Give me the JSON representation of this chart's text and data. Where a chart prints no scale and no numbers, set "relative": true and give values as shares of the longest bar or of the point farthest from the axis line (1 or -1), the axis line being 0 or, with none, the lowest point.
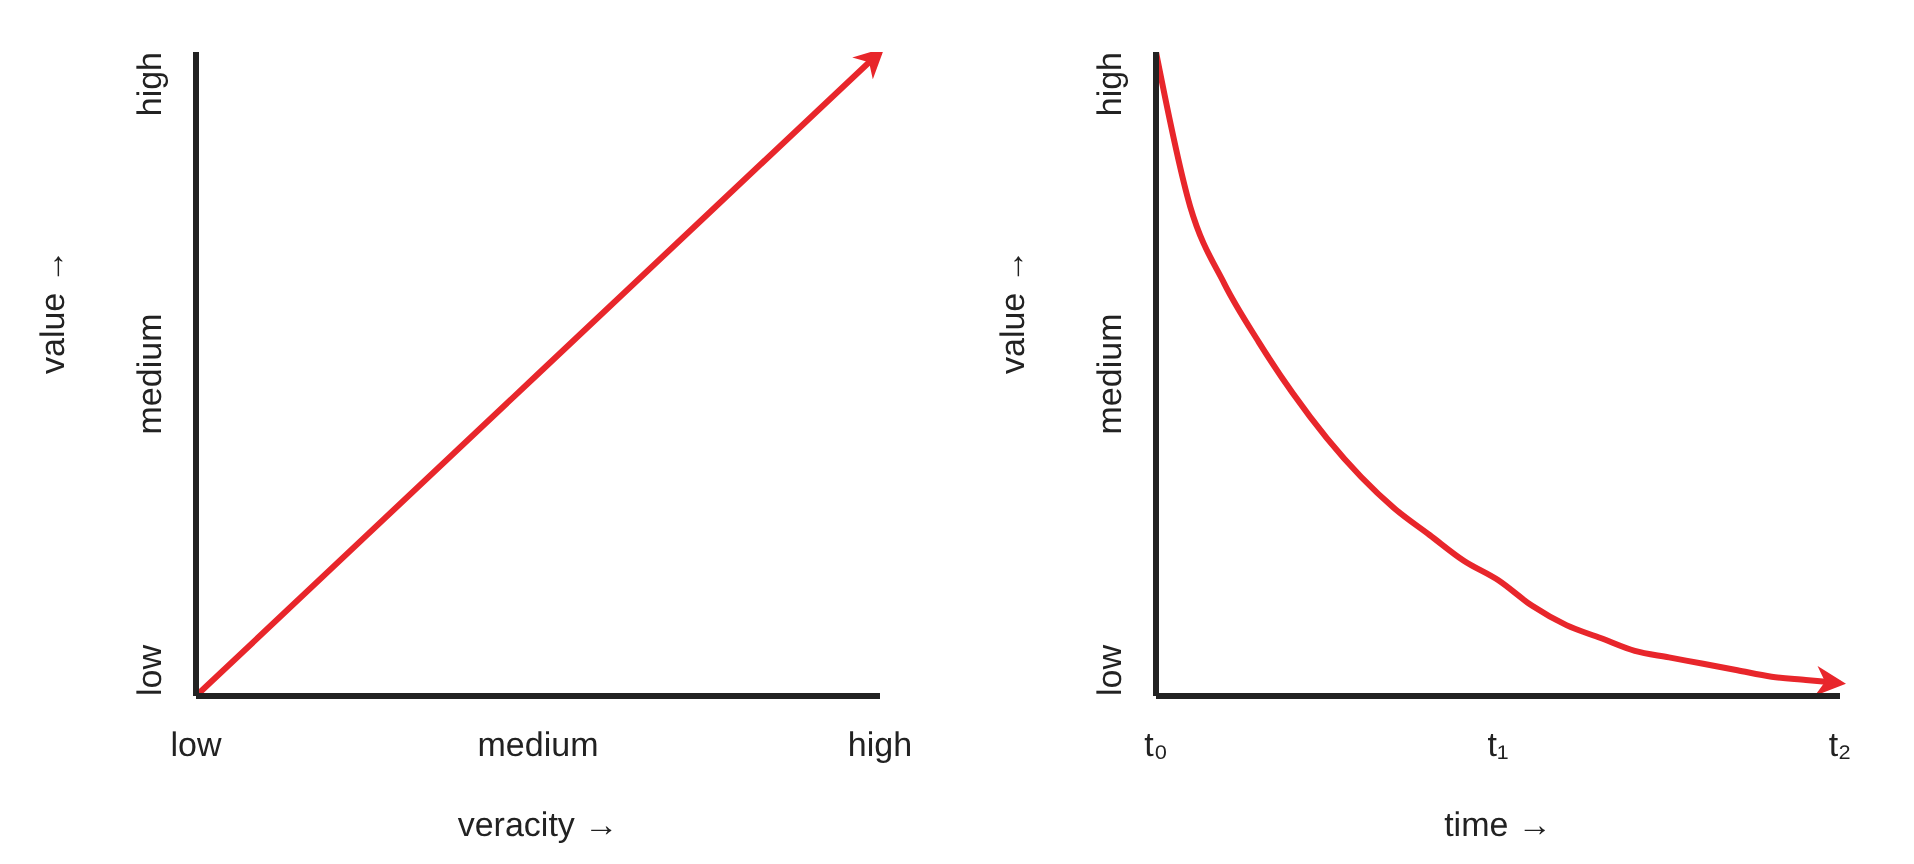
{
  "chart_data": [
    {
      "type": "line",
      "xlabel": "veracity →",
      "ylabel": "value →",
      "relative": true,
      "categories": [
        "low",
        "medium",
        "high"
      ],
      "annotations": [
        "low",
        "medium",
        "high"
      ],
      "marker": "none",
      "line_style": "solid",
      "series": [
        {
          "color": "#e8262b",
          "values": [
            0,
            0.5,
            1
          ]
        }
      ]
    },
    {
      "type": "line",
      "xlabel": "time →",
      "ylabel": "value →",
      "relative": true,
      "categories": [
        "t₀",
        null,
        null,
        null,
        null,
        null,
        null,
        null,
        null,
        null,
        "t₁",
        null,
        null,
        null,
        null,
        null,
        null,
        null,
        null,
        null,
        "t₂"
      ],
      "annotations": [
        "low",
        "medium",
        "high"
      ],
      "marker": "none",
      "line_style": "solid",
      "series": [
        {
          "color": "#e8262b",
          "values": [
            1.0,
            0.76,
            0.64,
            0.55,
            0.47,
            0.4,
            0.34,
            0.29,
            0.25,
            0.21,
            0.18,
            0.14,
            0.11,
            0.09,
            0.07,
            0.06,
            0.05,
            0.04,
            0.03,
            0.025,
            0.02
          ]
        }
      ]
    }
  ]
}
